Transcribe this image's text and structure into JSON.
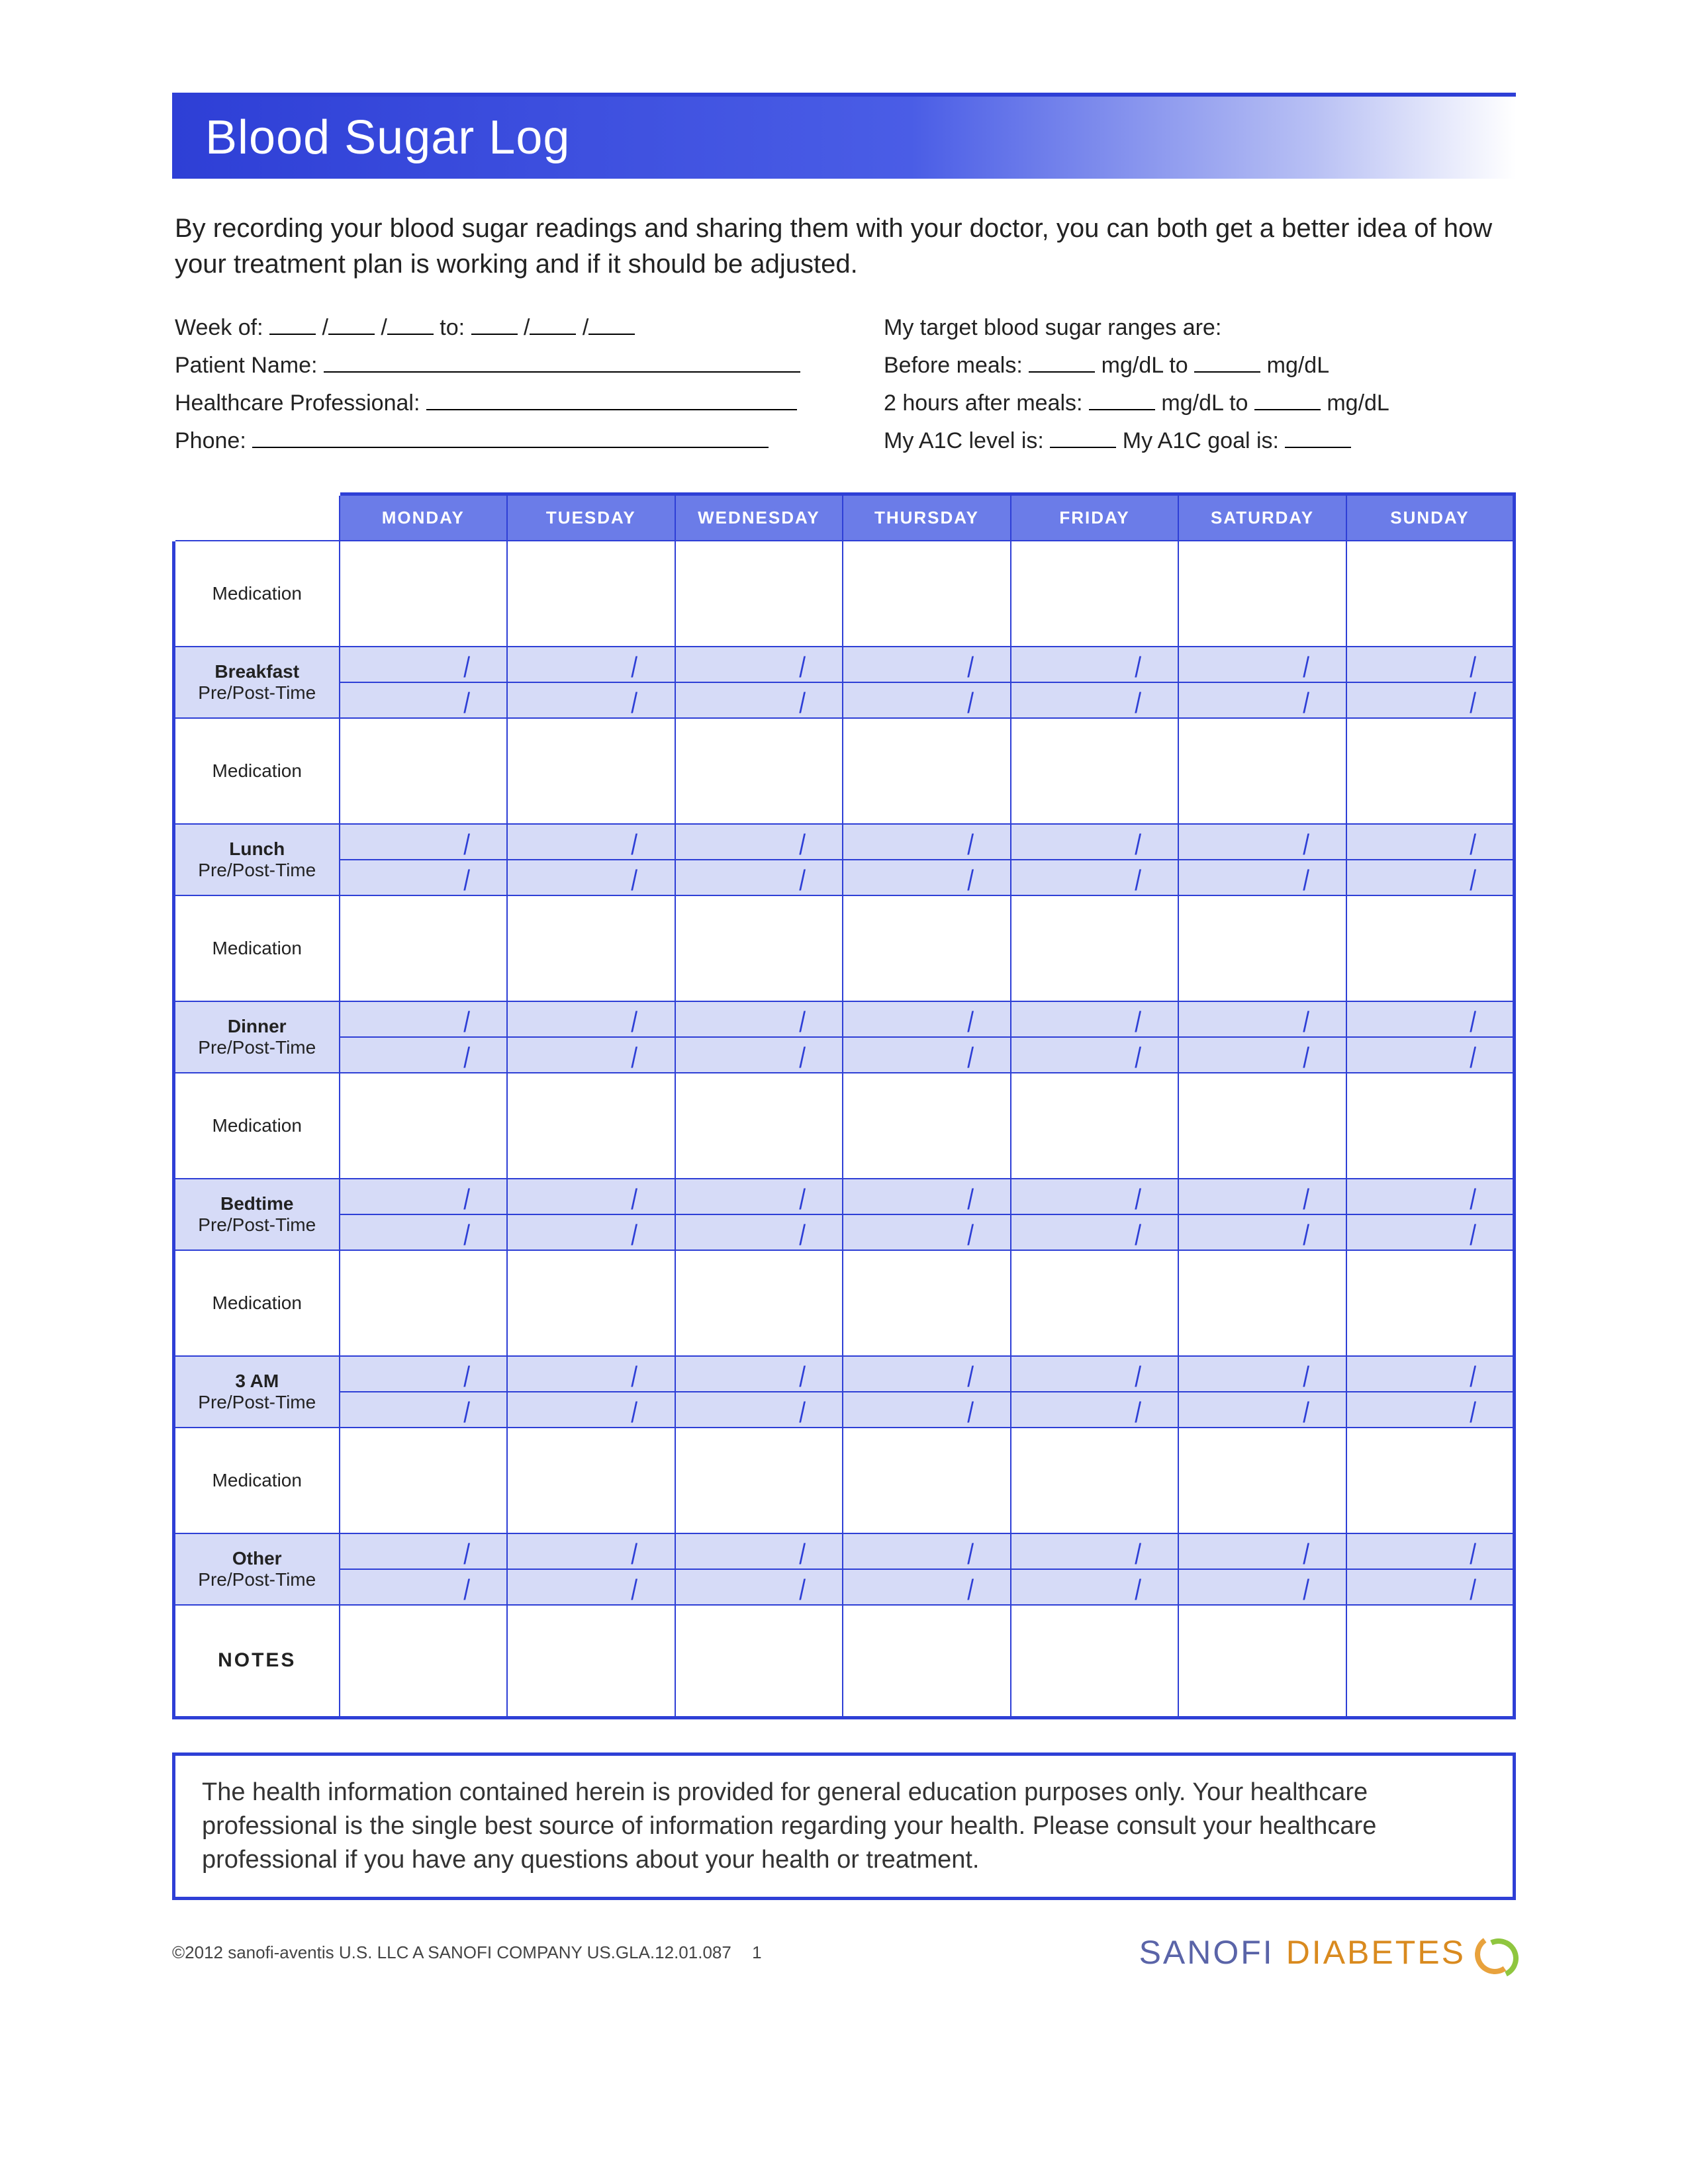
{
  "title": "Blood Sugar Log",
  "intro": "By recording your blood sugar readings and sharing them with your doctor, you can both get a better idea of how your treatment plan is working and if it should be adjusted.",
  "fields": {
    "week_of": "Week of:",
    "to": "to:",
    "patient_name": "Patient Name:",
    "hcp": "Healthcare Professional:",
    "phone": "Phone:",
    "target_intro": "My target blood sugar ranges are:",
    "before_meals": "Before meals:",
    "mgdl_to": "mg/dL to",
    "mgdl": "mg/dL",
    "after_meals": "2 hours after meals:",
    "a1c_level": "My A1C level is:",
    "a1c_goal": "My A1C goal is:"
  },
  "days": [
    "MONDAY",
    "TUESDAY",
    "WEDNESDAY",
    "THURSDAY",
    "FRIDAY",
    "SATURDAY",
    "SUNDAY"
  ],
  "row_labels": {
    "medication": "Medication",
    "prepost": "Pre/Post-Time",
    "breakfast": "Breakfast",
    "lunch": "Lunch",
    "dinner": "Dinner",
    "bedtime": "Bedtime",
    "three_am": "3 AM",
    "other": "Other",
    "notes": "NOTES"
  },
  "disclaimer": "The health information contained herein is provided for general education purposes only. Your healthcare professional is the single best source of information regarding your health. Please consult your healthcare professional if you have any questions about your health or treatment.",
  "footer": {
    "copyright": "©2012 sanofi-aventis U.S. LLC  A SANOFI COMPANY  US.GLA.12.01.087",
    "page": "1",
    "brand1": "SANOFI",
    "brand2": "DIABETES"
  },
  "colors": {
    "primary": "#2e3fd6",
    "header_fill": "#6b7ce8",
    "shade": "#d6dbf7"
  }
}
